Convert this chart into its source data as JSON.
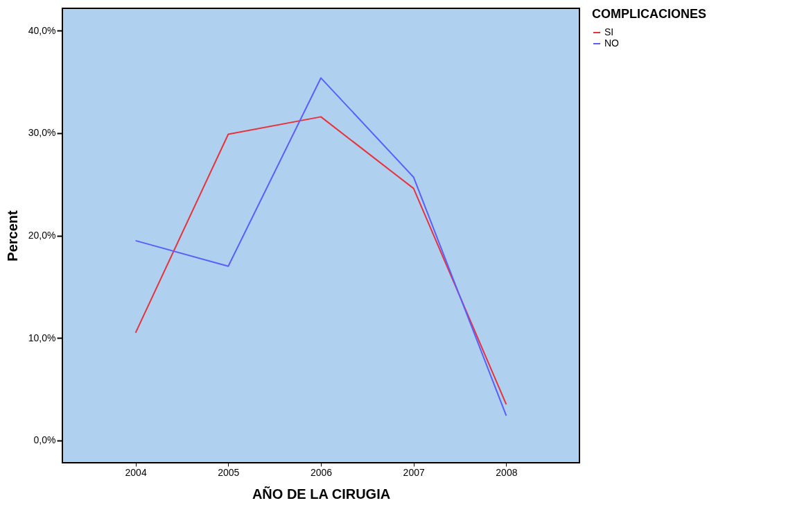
{
  "chart_data": {
    "type": "line",
    "xlabel": "AÑO DE LA CIRUGIA",
    "ylabel": "Percent",
    "legend_title": "COMPLICACIONES",
    "legend": "top right",
    "grid": false,
    "marker": "none",
    "line_style": "solid",
    "categories": [
      "2004",
      "2005",
      "2006",
      "2007",
      "2008"
    ],
    "ylim": [
      -2.2,
      42.2
    ],
    "yticks": [
      {
        "value": 0,
        "label": "0,0%"
      },
      {
        "value": 10,
        "label": "10,0%"
      },
      {
        "value": 20,
        "label": "20,0%"
      },
      {
        "value": 30,
        "label": "30,0%"
      },
      {
        "value": 40,
        "label": "40,0%"
      }
    ],
    "series": [
      {
        "name": "SI",
        "color": "#e8313a",
        "values": [
          10.5,
          29.9,
          31.6,
          24.6,
          3.5
        ]
      },
      {
        "name": "NO",
        "color": "#5a5eff",
        "values": [
          19.5,
          17.0,
          35.4,
          25.7,
          2.4
        ]
      }
    ]
  }
}
